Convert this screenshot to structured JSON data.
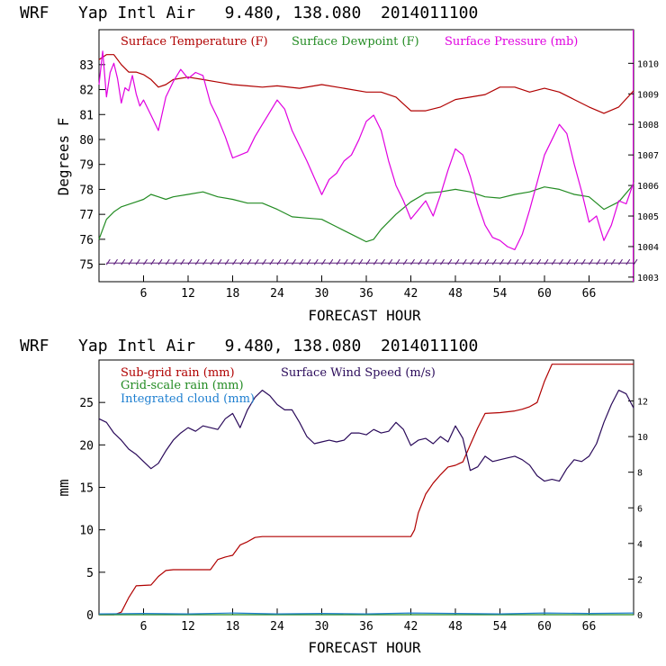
{
  "panels": [
    {
      "title": "WRF   Yap Intl Air   9.480, 138.080  2014011100",
      "xlabel": "FORECAST HOUR",
      "ylabel": "Degrees F",
      "legend": [
        {
          "label": "Surface Temperature (F)",
          "color": "#b00000"
        },
        {
          "label": "Surface Dewpoint (F)",
          "color": "#228b22"
        },
        {
          "label": "Surface Pressure (mb)",
          "color": "#e000e0"
        }
      ],
      "wind_barbs_label": "wind barbs"
    },
    {
      "title": "WRF   Yap Intl Air   9.480, 138.080  2014011100",
      "xlabel": "FORECAST HOUR",
      "ylabel": "mm",
      "legend": [
        {
          "label": "Sub-grid rain (mm)",
          "color": "#b00000"
        },
        {
          "label": "Surface Wind Speed (m/s)",
          "color": "#2a0a5a"
        },
        {
          "label": "Grid-scale rain (mm)",
          "color": "#228b22"
        },
        {
          "label": "Integrated cloud (mm)",
          "color": "#1e7fd0"
        }
      ]
    }
  ],
  "chart_data": [
    {
      "type": "line",
      "title": "WRF   Yap Intl Air   9.480, 138.080  2014011100",
      "xlabel": "FORECAST HOUR",
      "ylabel": "Degrees F",
      "xlim": [
        0,
        72
      ],
      "xticks": [
        "6",
        "12",
        "18",
        "24",
        "30",
        "36",
        "42",
        "48",
        "54",
        "60",
        "66"
      ],
      "ylim": [
        74.3,
        84.4
      ],
      "yticks": [
        "75",
        "76",
        "77",
        "78",
        "79",
        "80",
        "81",
        "82",
        "83"
      ],
      "y2label": "Surface Pressure (mb)",
      "y2lim": [
        1002.85,
        1011.1
      ],
      "y2ticks": [
        "1003",
        "1004",
        "1005",
        "1006",
        "1007",
        "1008",
        "1009",
        "1010"
      ],
      "series": [
        {
          "name": "Surface Temperature (F)",
          "axis": "left",
          "color": "#b00000",
          "x": [
            0,
            1,
            2,
            3,
            4,
            5,
            6,
            7,
            8,
            9,
            10,
            12,
            14,
            16,
            18,
            20,
            22,
            24,
            27,
            30,
            33,
            36,
            38,
            40,
            42,
            44,
            46,
            48,
            50,
            52,
            54,
            56,
            58,
            60,
            62,
            64,
            66,
            68,
            70,
            72
          ],
          "values": [
            83.2,
            83.4,
            83.4,
            83.0,
            82.7,
            82.7,
            82.6,
            82.4,
            82.1,
            82.2,
            82.4,
            82.5,
            82.4,
            82.3,
            82.2,
            82.15,
            82.1,
            82.15,
            82.05,
            82.2,
            82.05,
            81.9,
            81.9,
            81.7,
            81.15,
            81.15,
            81.3,
            81.6,
            81.7,
            81.8,
            82.1,
            82.1,
            81.9,
            82.05,
            81.9,
            81.6,
            81.3,
            81.05,
            81.3,
            81.95
          ]
        },
        {
          "name": "Surface Dewpoint (F)",
          "axis": "left",
          "color": "#228b22",
          "x": [
            0,
            1,
            2,
            3,
            4,
            5,
            6,
            7,
            8,
            9,
            10,
            12,
            14,
            16,
            18,
            20,
            22,
            24,
            26,
            28,
            30,
            32,
            34,
            36,
            37,
            38,
            40,
            42,
            44,
            46,
            48,
            50,
            52,
            54,
            56,
            58,
            60,
            62,
            64,
            66,
            68,
            70,
            72
          ],
          "values": [
            76.0,
            76.8,
            77.1,
            77.3,
            77.4,
            77.5,
            77.6,
            77.8,
            77.7,
            77.6,
            77.7,
            77.8,
            77.9,
            77.7,
            77.6,
            77.45,
            77.45,
            77.2,
            76.9,
            76.85,
            76.8,
            76.5,
            76.2,
            75.9,
            76.0,
            76.4,
            77.0,
            77.5,
            77.85,
            77.9,
            78.0,
            77.9,
            77.7,
            77.65,
            77.8,
            77.9,
            78.1,
            78.0,
            77.8,
            77.7,
            77.2,
            77.5,
            78.2
          ]
        },
        {
          "name": "Surface Pressure (mb)",
          "axis": "right",
          "color": "#e000e0",
          "x": [
            0,
            0.5,
            1,
            1.5,
            2,
            2.5,
            3,
            3.5,
            4,
            4.5,
            5,
            5.5,
            6,
            7,
            8,
            9,
            10,
            11,
            12,
            13,
            14,
            15,
            16,
            17,
            18,
            19,
            20,
            21,
            22,
            23,
            24,
            25,
            26,
            28,
            30,
            31,
            32,
            33,
            34,
            35,
            36,
            37,
            38,
            39,
            40,
            41,
            42,
            43,
            44,
            45,
            46,
            47,
            48,
            49,
            50,
            51,
            52,
            53,
            54,
            55,
            56,
            57,
            58,
            59,
            60,
            61,
            62,
            63,
            64,
            65,
            66,
            67,
            68,
            69,
            70,
            71,
            72
          ],
          "values": [
            1009.3,
            1010.4,
            1008.9,
            1009.7,
            1010.0,
            1009.5,
            1008.7,
            1009.2,
            1009.1,
            1009.6,
            1009.0,
            1008.6,
            1008.8,
            1008.3,
            1007.8,
            1008.9,
            1009.4,
            1009.8,
            1009.5,
            1009.7,
            1009.6,
            1008.7,
            1008.2,
            1007.6,
            1006.9,
            1007.0,
            1007.1,
            1007.6,
            1008.0,
            1008.4,
            1008.8,
            1008.5,
            1007.8,
            1006.8,
            1005.7,
            1006.2,
            1006.4,
            1006.8,
            1007.0,
            1007.5,
            1008.1,
            1008.3,
            1007.8,
            1006.8,
            1006.0,
            1005.5,
            1004.9,
            1005.2,
            1005.5,
            1005.0,
            1005.7,
            1006.5,
            1007.2,
            1007.0,
            1006.3,
            1005.4,
            1004.7,
            1004.3,
            1004.2,
            1004.0,
            1003.9,
            1004.4,
            1005.2,
            1006.1,
            1007.0,
            1007.5,
            1008.0,
            1007.7,
            1006.7,
            1005.8,
            1004.8,
            1005.0,
            1004.2,
            1004.7,
            1005.5,
            1005.4,
            1006.1
          ]
        }
      ],
      "wind_barbs": {
        "value_level": 75.05,
        "x_start": 1,
        "x_end": 72,
        "step": 1
      }
    },
    {
      "type": "line",
      "title": "WRF   Yap Intl Air   9.480, 138.080  2014011100",
      "xlabel": "FORECAST HOUR",
      "ylabel": "mm",
      "xlim": [
        0,
        72
      ],
      "xticks": [
        "6",
        "12",
        "18",
        "24",
        "30",
        "36",
        "42",
        "48",
        "54",
        "60",
        "66"
      ],
      "ylim": [
        0,
        30
      ],
      "yticks": [
        "0",
        "5",
        "10",
        "15",
        "20",
        "25"
      ],
      "y2label": "Surface Wind Speed (m/s)",
      "y2lim": [
        0,
        14.3
      ],
      "y2ticks": [
        "0",
        "2",
        "4",
        "6",
        "8",
        "10",
        "12"
      ],
      "series": [
        {
          "name": "Sub-grid rain (mm)",
          "axis": "left",
          "color": "#b00000",
          "x": [
            0,
            2,
            3,
            4,
            5,
            7,
            8,
            9,
            10,
            11,
            12,
            13,
            14,
            15,
            16,
            17,
            18,
            19,
            20,
            21,
            22,
            23,
            24,
            27,
            30,
            33,
            36,
            39,
            42,
            42.5,
            43,
            44,
            45,
            46,
            47,
            48,
            49,
            50,
            51,
            52,
            54,
            56,
            57,
            58,
            59,
            60,
            61,
            63,
            66,
            69,
            70,
            71,
            72
          ],
          "values": [
            0,
            0,
            0.3,
            2.0,
            3.4,
            3.5,
            4.5,
            5.2,
            5.3,
            5.3,
            5.3,
            5.3,
            5.3,
            5.3,
            6.5,
            6.8,
            7.0,
            8.2,
            8.6,
            9.1,
            9.2,
            9.2,
            9.2,
            9.2,
            9.2,
            9.2,
            9.2,
            9.2,
            9.2,
            10.0,
            12.0,
            14.2,
            15.5,
            16.5,
            17.4,
            17.6,
            18.0,
            20.0,
            22.0,
            23.7,
            23.8,
            24.0,
            24.2,
            24.5,
            25.0,
            27.5,
            29.5,
            29.5,
            29.5,
            29.5,
            29.5,
            29.5,
            29.5
          ]
        },
        {
          "name": "Surface Wind Speed (m/s)",
          "axis": "right",
          "color": "#2a0a5a",
          "x": [
            0,
            1,
            2,
            3,
            4,
            5,
            6,
            7,
            8,
            9,
            10,
            11,
            12,
            13,
            14,
            15,
            16,
            17,
            18,
            19,
            20,
            21,
            22,
            23,
            24,
            25,
            26,
            27,
            28,
            29,
            30,
            31,
            32,
            33,
            34,
            35,
            36,
            37,
            38,
            39,
            40,
            41,
            42,
            43,
            44,
            45,
            46,
            47,
            48,
            49,
            50,
            51,
            52,
            53,
            54,
            55,
            56,
            57,
            58,
            59,
            60,
            61,
            62,
            63,
            64,
            65,
            66,
            67,
            68,
            69,
            70,
            71,
            72
          ],
          "values": [
            11.0,
            10.8,
            10.2,
            9.8,
            9.3,
            9.0,
            8.6,
            8.2,
            8.5,
            9.2,
            9.8,
            10.2,
            10.5,
            10.3,
            10.6,
            10.5,
            10.4,
            11.0,
            11.3,
            10.5,
            11.5,
            12.2,
            12.6,
            12.3,
            11.8,
            11.5,
            11.5,
            10.8,
            10.0,
            9.6,
            9.7,
            9.8,
            9.7,
            9.8,
            10.2,
            10.2,
            10.1,
            10.4,
            10.2,
            10.3,
            10.8,
            10.4,
            9.5,
            9.8,
            9.9,
            9.6,
            10.0,
            9.7,
            10.6,
            9.9,
            8.1,
            8.3,
            8.9,
            8.6,
            8.7,
            8.8,
            8.9,
            8.7,
            8.4,
            7.8,
            7.5,
            7.6,
            7.5,
            8.2,
            8.7,
            8.6,
            8.9,
            9.6,
            10.8,
            11.8,
            12.6,
            12.4,
            11.6
          ]
        },
        {
          "name": "Grid-scale rain (mm)",
          "axis": "left",
          "color": "#228b22",
          "x": [
            0,
            72
          ],
          "values": [
            0,
            0
          ]
        },
        {
          "name": "Integrated cloud (mm)",
          "axis": "left",
          "color": "#1e7fd0",
          "x": [
            0,
            6,
            12,
            18,
            24,
            30,
            36,
            42,
            48,
            54,
            60,
            66,
            72
          ],
          "values": [
            0.1,
            0.15,
            0.1,
            0.2,
            0.1,
            0.15,
            0.1,
            0.2,
            0.15,
            0.1,
            0.2,
            0.15,
            0.2
          ]
        }
      ]
    }
  ]
}
